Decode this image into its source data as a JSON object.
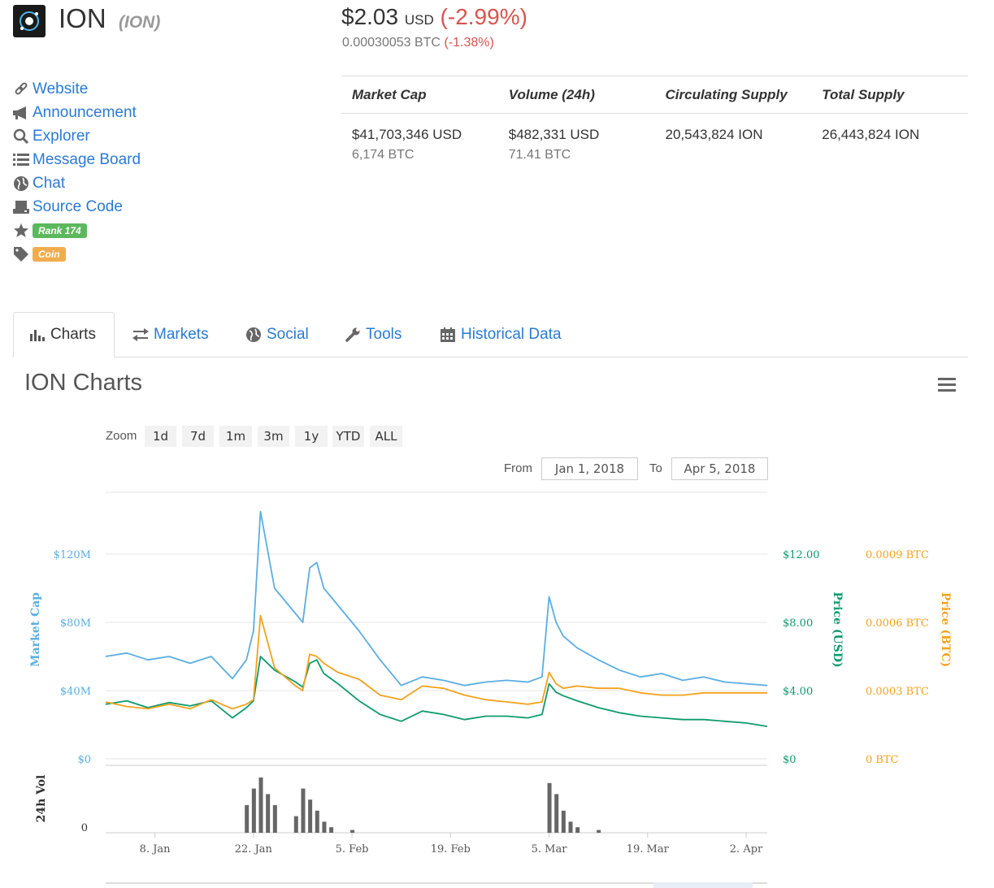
{
  "coin": {
    "name": "ION",
    "symbol": "(ION)"
  },
  "price": {
    "usd": "$2.03",
    "usd_unit": "USD",
    "usd_change": "(-2.99%)",
    "btc": "0.00030053 BTC",
    "btc_change": "(-1.38%)"
  },
  "links": [
    {
      "label": "Website",
      "icon": "link-icon"
    },
    {
      "label": "Announcement",
      "icon": "megaphone-icon"
    },
    {
      "label": "Explorer",
      "icon": "search-icon"
    },
    {
      "label": "Message Board",
      "icon": "list-icon"
    },
    {
      "label": "Chat",
      "icon": "globe-icon"
    },
    {
      "label": "Source Code",
      "icon": "hdd-icon"
    }
  ],
  "badges": {
    "rank": "Rank 174",
    "type": "Coin"
  },
  "stats": {
    "headers": [
      "Market Cap",
      "Volume (24h)",
      "Circulating Supply",
      "Total Supply"
    ],
    "values": [
      {
        "main": "$41,703,346 USD",
        "sub": "6,174 BTC"
      },
      {
        "main": "$482,331 USD",
        "sub": "71.41 BTC"
      },
      {
        "main": "20,543,824 ION",
        "sub": ""
      },
      {
        "main": "26,443,824 ION",
        "sub": ""
      }
    ]
  },
  "tabs": [
    {
      "label": "Charts",
      "icon": "bar-chart-icon",
      "active": true
    },
    {
      "label": "Markets",
      "icon": "exchange-icon"
    },
    {
      "label": "Social",
      "icon": "globe-icon"
    },
    {
      "label": "Tools",
      "icon": "wrench-icon"
    },
    {
      "label": "Historical Data",
      "icon": "calendar-icon"
    }
  ],
  "chart_ui": {
    "title": "ION Charts",
    "zoom_label": "Zoom",
    "zoom_buttons": [
      "1d",
      "7d",
      "1m",
      "3m",
      "1y",
      "YTD",
      "ALL"
    ],
    "from_label": "From",
    "from_value": "Jan 1, 2018",
    "to_label": "To",
    "to_value": "Apr 5, 2018"
  },
  "colors": {
    "market_cap": "#5aaee3",
    "price_usd": "#0e9b6e",
    "price_btc": "#f4a21c",
    "volume": "#666666",
    "link": "#2a7bd4",
    "negative": "#d9534f"
  },
  "chart_data": {
    "type": "line",
    "x_ticks": [
      "8. Jan",
      "22. Jan",
      "5. Feb",
      "19. Feb",
      "5. Mar",
      "19. Mar",
      "2. Apr"
    ],
    "axes": {
      "market_cap": {
        "label": "Market Cap",
        "ticks": [
          "$0",
          "$40M",
          "$80M",
          "$120M"
        ],
        "range": [
          0,
          120000000
        ]
      },
      "price_usd": {
        "label": "Price (USD)",
        "ticks": [
          "$0",
          "$4.00",
          "$8.00",
          "$12.00"
        ],
        "range": [
          0,
          12
        ]
      },
      "price_btc": {
        "label": "Price (BTC)",
        "ticks": [
          "0 BTC",
          "0.0003 BTC",
          "0.0006 BTC",
          "0.0009 BTC"
        ],
        "range": [
          0,
          0.0009
        ]
      },
      "volume": {
        "label": "24h Vol",
        "ticks": [
          "0"
        ]
      }
    },
    "x_days": [
      0,
      3,
      6,
      9,
      12,
      15,
      18,
      20,
      21,
      22,
      24,
      27,
      28,
      29,
      30,
      31,
      33,
      36,
      39,
      42,
      45,
      48,
      51,
      54,
      57,
      60,
      62,
      63,
      64,
      65,
      67,
      70,
      73,
      76,
      79,
      82,
      85,
      88,
      91,
      94
    ],
    "series": [
      {
        "name": "Market Cap",
        "axis": "market_cap",
        "values": [
          60000000,
          62000000,
          58000000,
          60000000,
          56000000,
          60000000,
          47000000,
          58000000,
          75000000,
          145000000,
          100000000,
          85000000,
          80000000,
          112000000,
          115000000,
          100000000,
          90000000,
          75000000,
          58000000,
          43000000,
          48000000,
          46000000,
          43000000,
          45000000,
          46000000,
          45000000,
          48000000,
          95000000,
          80000000,
          72000000,
          65000000,
          58000000,
          52000000,
          48000000,
          50000000,
          46000000,
          48000000,
          45000000,
          44000000,
          43000000
        ]
      },
      {
        "name": "Price (USD)",
        "axis": "price_usd",
        "values": [
          3.2,
          3.4,
          3.0,
          3.3,
          3.1,
          3.4,
          2.4,
          3.0,
          3.4,
          6.0,
          5.2,
          4.5,
          4.2,
          5.6,
          5.8,
          5.0,
          4.4,
          3.4,
          2.6,
          2.2,
          2.8,
          2.6,
          2.3,
          2.5,
          2.5,
          2.4,
          2.6,
          4.4,
          3.9,
          3.7,
          3.4,
          3.0,
          2.7,
          2.5,
          2.4,
          2.3,
          2.3,
          2.2,
          2.1,
          1.9
        ]
      },
      {
        "name": "Price (BTC)",
        "axis": "price_btc",
        "values": [
          0.00025,
          0.00023,
          0.00022,
          0.00024,
          0.00022,
          0.00026,
          0.00022,
          0.00024,
          0.00026,
          0.00063,
          0.0004,
          0.00032,
          0.0003,
          0.00046,
          0.00045,
          0.00042,
          0.00038,
          0.00035,
          0.00028,
          0.00026,
          0.00032,
          0.00031,
          0.00028,
          0.00026,
          0.00025,
          0.00024,
          0.00025,
          0.00038,
          0.00033,
          0.00031,
          0.00032,
          0.00031,
          0.00031,
          0.00029,
          0.00028,
          0.00028,
          0.00029,
          0.00029,
          0.00029,
          0.00029
        ]
      }
    ],
    "volume": {
      "days": [
        20,
        21,
        22,
        23,
        24,
        27,
        28,
        29,
        30,
        31,
        32,
        35,
        63,
        64,
        65,
        66,
        67,
        70
      ],
      "values": [
        0.5,
        0.8,
        1.0,
        0.7,
        0.5,
        0.3,
        0.8,
        0.6,
        0.4,
        0.2,
        0.1,
        0.05,
        0.9,
        0.7,
        0.4,
        0.2,
        0.1,
        0.05
      ]
    }
  }
}
